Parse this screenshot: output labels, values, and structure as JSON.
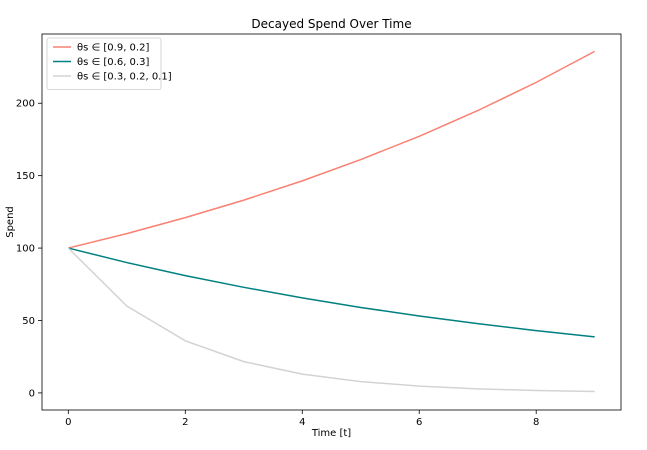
{
  "chart_data": {
    "type": "line",
    "title": "Decayed Spend Over Time",
    "xlabel": "Time [t]",
    "ylabel": "Spend",
    "xlim": [
      -0.45,
      9.45
    ],
    "ylim": [
      -11.8,
      247.8
    ],
    "xticks": [
      0,
      2,
      4,
      6,
      8
    ],
    "yticks": [
      0,
      50,
      100,
      150,
      200
    ],
    "grid": false,
    "legend_position": "top-left",
    "x": [
      0,
      1,
      2,
      3,
      4,
      5,
      6,
      7,
      8,
      9
    ],
    "series": [
      {
        "name": "θs ∈ [0.9, 0.2]",
        "color": "#fa8072",
        "values": [
          100,
          110,
          121,
          133.1,
          146.4,
          161.1,
          177.2,
          194.9,
          214.4,
          235.8
        ]
      },
      {
        "name": "θs ∈ [0.6, 0.3]",
        "color": "#008080",
        "values": [
          100,
          90,
          81,
          72.9,
          65.6,
          59.0,
          53.1,
          47.8,
          43.0,
          38.7
        ]
      },
      {
        "name": "θs ∈ [0.3, 0.2, 0.1]",
        "color": "#d3d3d3",
        "values": [
          100,
          60,
          36,
          21.6,
          13.0,
          7.8,
          4.7,
          2.8,
          1.7,
          1.0
        ]
      }
    ]
  }
}
